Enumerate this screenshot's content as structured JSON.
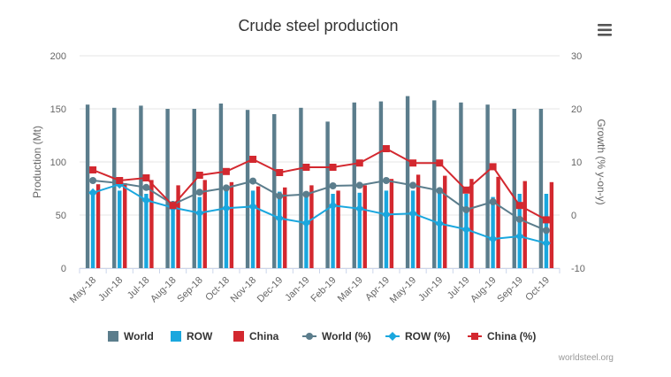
{
  "chart_data": {
    "type": "bar",
    "title": "Crude steel production",
    "categories": [
      "May-18",
      "Jun-18",
      "Jul-18",
      "Aug-18",
      "Sep-18",
      "Oct-18",
      "Nov-18",
      "Dec-19",
      "Jan-19",
      "Feb-19",
      "Mar-19",
      "Apr-19",
      "May-19",
      "Jun-19",
      "Jul-19",
      "Aug-19",
      "Sep-19",
      "Oct-19"
    ],
    "y_left": {
      "label": "Production (Mt)",
      "min": 0,
      "max": 200,
      "ticks": [
        0,
        50,
        100,
        150,
        200
      ]
    },
    "y_right": {
      "label": "Growth (% y-on-y)",
      "min": -10,
      "max": 30,
      "ticks": [
        -10,
        0,
        10,
        20,
        30
      ]
    },
    "grid": true,
    "legend_position": "bottom",
    "series": [
      {
        "name": "World",
        "kind": "bar",
        "axis": "left",
        "color": "#5b7d8c",
        "values": [
          154,
          151,
          153,
          150,
          150,
          155,
          149,
          145,
          151,
          138,
          156,
          157,
          162,
          158,
          156,
          154,
          150,
          150
        ]
      },
      {
        "name": "ROW",
        "kind": "bar",
        "axis": "left",
        "color": "#1aa7de",
        "values": [
          71,
          73,
          70,
          61,
          67,
          73,
          73,
          72,
          71,
          70,
          71,
          73,
          73,
          71,
          70,
          67,
          70,
          70
        ]
      },
      {
        "name": "China",
        "kind": "bar",
        "axis": "left",
        "color": "#d3282f",
        "values": [
          79,
          80,
          83,
          78,
          83,
          81,
          77,
          76,
          78,
          73,
          78,
          84,
          88,
          87,
          84,
          86,
          82,
          81
        ]
      },
      {
        "name": "World (%)",
        "kind": "line",
        "axis": "right",
        "color": "#5b7d8c",
        "marker": "circle",
        "values": [
          6.5,
          6.0,
          5.2,
          2.0,
          4.3,
          5.1,
          6.4,
          3.6,
          3.9,
          5.5,
          5.6,
          6.5,
          5.6,
          4.6,
          1.0,
          2.5,
          -0.8,
          -2.9
        ]
      },
      {
        "name": "ROW (%)",
        "kind": "line",
        "axis": "right",
        "color": "#1aa7de",
        "marker": "diamond",
        "values": [
          4.2,
          5.8,
          2.8,
          1.4,
          0.4,
          1.3,
          1.6,
          -0.6,
          -1.5,
          1.8,
          1.2,
          0.1,
          0.3,
          -1.6,
          -2.7,
          -4.5,
          -4.0,
          -5.3
        ]
      },
      {
        "name": "China (%)",
        "kind": "line",
        "axis": "right",
        "color": "#d3282f",
        "marker": "square",
        "values": [
          8.5,
          6.5,
          7.0,
          1.8,
          7.5,
          8.2,
          10.5,
          8.0,
          9.0,
          9.0,
          9.8,
          12.5,
          9.8,
          9.8,
          4.7,
          9.1,
          1.8,
          -0.9
        ]
      }
    ],
    "credits": "worldsteel.org"
  },
  "ui": {
    "menu_icon": "hamburger-menu-icon"
  }
}
